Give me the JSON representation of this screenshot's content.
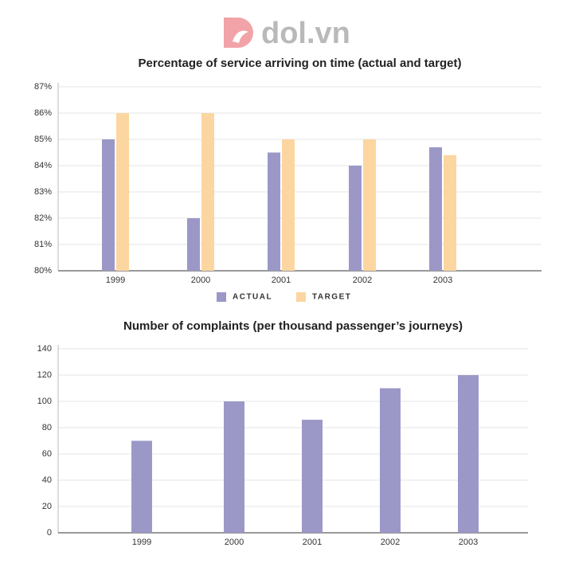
{
  "brand": "dol.vn",
  "chart_data": [
    {
      "type": "bar",
      "title": "Percentage of service arriving on time (actual and target)",
      "categories": [
        "1999",
        "2000",
        "2001",
        "2002",
        "2003"
      ],
      "series": [
        {
          "name": "ACTUAL",
          "color": "#9b98c8",
          "values": [
            85,
            82,
            84.5,
            84,
            84.7
          ]
        },
        {
          "name": "TARGET",
          "color": "#fcd6a0",
          "values": [
            86,
            86,
            85,
            85,
            84.4
          ]
        }
      ],
      "ylim": [
        80,
        87
      ],
      "yticks": [
        {
          "value": 80,
          "label": "80%"
        },
        {
          "value": 81,
          "label": "81%"
        },
        {
          "value": 82,
          "label": "82%"
        },
        {
          "value": 83,
          "label": "83%"
        },
        {
          "value": 84,
          "label": "84%"
        },
        {
          "value": 85,
          "label": "85%"
        },
        {
          "value": 86,
          "label": "86%"
        },
        {
          "value": 87,
          "label": "87%"
        }
      ],
      "grid": true,
      "legend": "bottom"
    },
    {
      "type": "bar",
      "title": "Number of complaints (per thousand passenger’s journeys)",
      "categories": [
        "1999",
        "2000",
        "2001",
        "2002",
        "2003"
      ],
      "values": [
        70,
        100,
        86,
        110,
        120
      ],
      "color": "#9b98c8",
      "ylim": [
        0,
        140
      ],
      "yticks": [
        0,
        20,
        40,
        60,
        80,
        100,
        120,
        140
      ],
      "grid": true
    }
  ]
}
